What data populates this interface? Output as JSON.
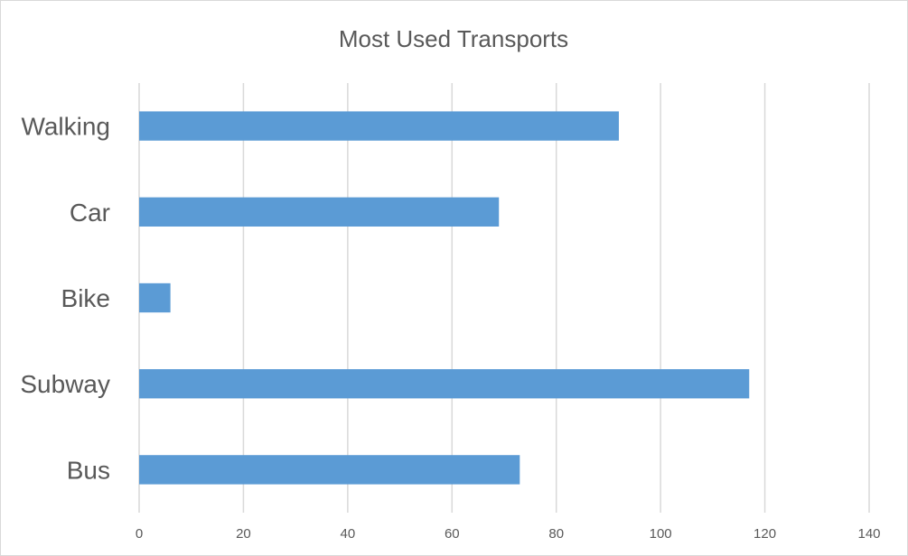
{
  "chart_data": {
    "type": "bar",
    "orientation": "horizontal",
    "title": "Most Used Transports",
    "xlabel": "",
    "ylabel": "",
    "categories": [
      "Walking",
      "Car",
      "Bike",
      "Subway",
      "Bus"
    ],
    "values": [
      92,
      69,
      6,
      117,
      73
    ],
    "xlim": [
      0,
      140
    ],
    "ticks": [
      "0",
      "20",
      "40",
      "60",
      "80",
      "100",
      "120",
      "140"
    ],
    "grid": true,
    "legend": "none",
    "bar_color": "#5b9bd5"
  }
}
